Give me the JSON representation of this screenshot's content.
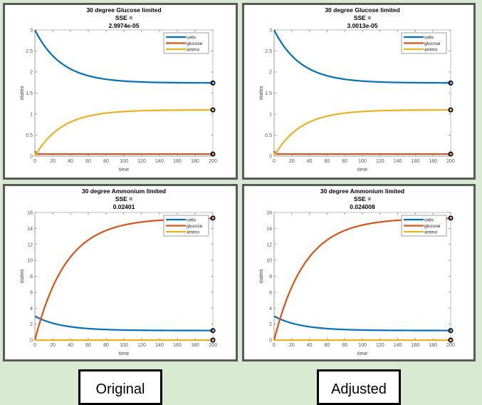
{
  "colors": {
    "cells": "#0072bd",
    "glucose": "#d95319",
    "ammo": "#edb120",
    "background": "#d9ead3"
  },
  "labels": {
    "left": "Original",
    "right": "Adjusted"
  },
  "chart_data": [
    {
      "type": "line",
      "title_lines": [
        "30 degree Glucose limited",
        "SSE =",
        "2.9974e-05"
      ],
      "xlabel": "time",
      "ylabel": "states",
      "xlim": [
        0,
        200
      ],
      "ylim": [
        0,
        3
      ],
      "xticks": [
        "0",
        "20",
        "40",
        "60",
        "80",
        "100",
        "120",
        "140",
        "160",
        "180",
        "200"
      ],
      "yticks": [
        "0",
        "0.5",
        "1",
        "1.5",
        "2",
        "2.5",
        "3"
      ],
      "legend": {
        "position": "top-right",
        "entries": [
          "cells",
          "glucose",
          "ammo"
        ]
      },
      "series": [
        {
          "name": "cells",
          "start": 3.0,
          "end": 1.74,
          "tau": 30,
          "final_marker": 1.74
        },
        {
          "name": "glucose",
          "start": 0.12,
          "end": 0.05,
          "tau": 1,
          "final_marker": 0.05
        },
        {
          "name": "ammo",
          "start": 0.0,
          "end": 1.1,
          "tau": 30,
          "final_marker": 1.1
        }
      ]
    },
    {
      "type": "line",
      "title_lines": [
        "30 degree Glucose limited",
        "SSE =",
        "3.0013e-05"
      ],
      "xlabel": "time",
      "ylabel": "states",
      "xlim": [
        0,
        200
      ],
      "ylim": [
        0,
        3
      ],
      "xticks": [
        "0",
        "20",
        "40",
        "60",
        "80",
        "100",
        "120",
        "140",
        "160",
        "180",
        "200"
      ],
      "yticks": [
        "0",
        "0.5",
        "1",
        "1.5",
        "2",
        "2.5",
        "3"
      ],
      "legend": {
        "position": "top-right",
        "entries": [
          "cells",
          "glucose",
          "ammo"
        ]
      },
      "series": [
        {
          "name": "cells",
          "start": 3.0,
          "end": 1.74,
          "tau": 30,
          "final_marker": 1.74
        },
        {
          "name": "glucose",
          "start": 0.12,
          "end": 0.05,
          "tau": 1,
          "final_marker": 0.05
        },
        {
          "name": "ammo",
          "start": 0.0,
          "end": 1.1,
          "tau": 30,
          "final_marker": 1.1
        }
      ]
    },
    {
      "type": "line",
      "title_lines": [
        "30 degree Ammonium limited",
        "SSE =",
        "0.02401"
      ],
      "xlabel": "time",
      "ylabel": "states",
      "xlim": [
        0,
        200
      ],
      "ylim": [
        0,
        16
      ],
      "xticks": [
        "0",
        "20",
        "40",
        "60",
        "80",
        "100",
        "120",
        "140",
        "160",
        "180",
        "200"
      ],
      "yticks": [
        "0",
        "2",
        "4",
        "6",
        "8",
        "10",
        "12",
        "14",
        "16"
      ],
      "legend": {
        "position": "top-right",
        "entries": [
          "cells",
          "glucose",
          "ammo"
        ]
      },
      "series": [
        {
          "name": "cells",
          "start": 3.0,
          "end": 1.2,
          "tau": 30,
          "final_marker": 1.2
        },
        {
          "name": "glucose",
          "start": 0.0,
          "end": 15.3,
          "tau": 35,
          "final_marker": 15.3
        },
        {
          "name": "ammo",
          "start": 0.0,
          "end": 0.0,
          "tau": 30,
          "final_marker": 0.0
        }
      ]
    },
    {
      "type": "line",
      "title_lines": [
        "30 degree Ammonium limited",
        "SSE =",
        "0.024008"
      ],
      "xlabel": "time",
      "ylabel": "states",
      "xlim": [
        0,
        200
      ],
      "ylim": [
        0,
        16
      ],
      "xticks": [
        "0",
        "20",
        "40",
        "60",
        "80",
        "100",
        "120",
        "140",
        "160",
        "180",
        "200"
      ],
      "yticks": [
        "0",
        "2",
        "4",
        "6",
        "8",
        "10",
        "12",
        "14",
        "16"
      ],
      "legend": {
        "position": "top-right",
        "entries": [
          "cells",
          "glucose",
          "ammo"
        ]
      },
      "series": [
        {
          "name": "cells",
          "start": 3.0,
          "end": 1.2,
          "tau": 30,
          "final_marker": 1.2
        },
        {
          "name": "glucose",
          "start": 0.0,
          "end": 15.3,
          "tau": 35,
          "final_marker": 15.3
        },
        {
          "name": "ammo",
          "start": 0.0,
          "end": 0.0,
          "tau": 30,
          "final_marker": 0.0
        }
      ]
    }
  ]
}
